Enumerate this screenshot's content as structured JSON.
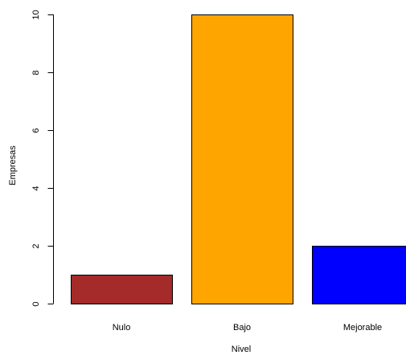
{
  "chart_data": {
    "type": "bar",
    "title": "",
    "xlabel": "Nivel",
    "ylabel": "Empresas",
    "categories": [
      "Nulo",
      "Bajo",
      "Mejorable"
    ],
    "values": [
      1,
      10,
      2
    ],
    "colors": [
      "#A52A2A",
      "#FFA500",
      "#0000FF"
    ],
    "bar_border_color": "#000000",
    "ylim": [
      0,
      10
    ],
    "yticks": [
      0,
      2,
      4,
      6,
      8,
      10
    ],
    "ytick_labels": [
      "0",
      "2",
      "4",
      "6",
      "8",
      "10"
    ],
    "grid": false,
    "legend": "none"
  }
}
